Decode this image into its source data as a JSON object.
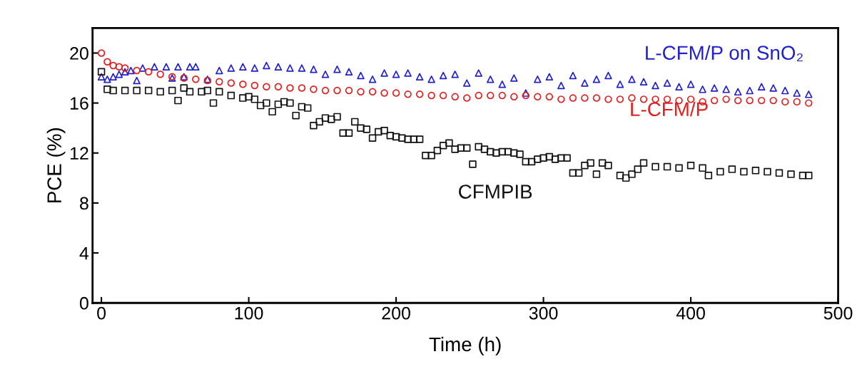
{
  "chart_data": {
    "type": "scatter",
    "xlabel": "Time (h)",
    "ylabel": "PCE (%)",
    "xlim": [
      -6,
      500
    ],
    "xticks": [
      0,
      100,
      200,
      300,
      400,
      500
    ],
    "ylim": [
      0,
      22
    ],
    "yticks": [
      0,
      4,
      8,
      12,
      16,
      20
    ],
    "grid": false,
    "legend": false,
    "series": [
      {
        "name": "L-CFM/P on SnO₂",
        "color": "#2222cc",
        "marker": "triangle",
        "x": [
          0,
          4,
          8,
          12,
          16,
          20,
          24,
          28,
          36,
          44,
          48,
          52,
          56,
          60,
          64,
          72,
          80,
          88,
          96,
          104,
          112,
          120,
          128,
          136,
          144,
          152,
          160,
          168,
          176,
          184,
          192,
          200,
          208,
          216,
          224,
          232,
          240,
          248,
          256,
          264,
          272,
          280,
          288,
          296,
          304,
          312,
          320,
          328,
          336,
          344,
          352,
          360,
          368,
          376,
          384,
          392,
          400,
          408,
          416,
          424,
          432,
          440,
          448,
          456,
          464,
          472,
          480
        ],
        "values": [
          18.1,
          17.9,
          18.1,
          18.3,
          18.5,
          18.6,
          17.8,
          18.8,
          18.9,
          18.9,
          18.0,
          18.9,
          18.1,
          18.9,
          18.9,
          17.9,
          18.6,
          18.8,
          18.9,
          18.8,
          19.0,
          18.9,
          18.8,
          18.8,
          18.7,
          18.3,
          18.7,
          18.5,
          18.2,
          17.9,
          18.4,
          18.3,
          18.4,
          18.1,
          17.9,
          18.2,
          18.3,
          17.6,
          18.4,
          17.9,
          17.5,
          18.0,
          16.8,
          17.9,
          18.1,
          17.4,
          18.2,
          17.6,
          17.9,
          18.2,
          17.5,
          17.9,
          17.7,
          17.4,
          17.6,
          17.3,
          17.5,
          17.1,
          17.2,
          17.1,
          16.9,
          17.0,
          17.3,
          17.2,
          17.0,
          16.8,
          16.7
        ]
      },
      {
        "name": "L-CFM/P",
        "color": "#e02020",
        "marker": "circle",
        "x": [
          0,
          4,
          8,
          12,
          16,
          24,
          32,
          40,
          48,
          56,
          64,
          72,
          80,
          88,
          96,
          104,
          112,
          120,
          128,
          136,
          144,
          152,
          160,
          168,
          176,
          184,
          192,
          200,
          208,
          216,
          224,
          232,
          240,
          248,
          256,
          264,
          272,
          280,
          288,
          296,
          304,
          312,
          320,
          328,
          336,
          344,
          352,
          360,
          368,
          376,
          384,
          392,
          400,
          408,
          416,
          424,
          432,
          440,
          448,
          456,
          464,
          472,
          480
        ],
        "values": [
          20.0,
          19.3,
          19.0,
          18.9,
          18.8,
          18.6,
          18.5,
          18.3,
          18.1,
          18.0,
          17.9,
          17.8,
          17.7,
          17.6,
          17.5,
          17.4,
          17.3,
          17.3,
          17.2,
          17.2,
          17.1,
          17.0,
          17.0,
          17.0,
          16.9,
          16.9,
          16.8,
          16.8,
          16.7,
          16.7,
          16.6,
          16.6,
          16.5,
          16.4,
          16.6,
          16.6,
          16.6,
          16.5,
          16.6,
          16.5,
          16.5,
          16.3,
          16.4,
          16.4,
          16.4,
          16.3,
          16.3,
          16.4,
          16.3,
          16.3,
          16.3,
          16.2,
          16.3,
          16.1,
          16.2,
          16.3,
          16.2,
          16.2,
          16.2,
          16.2,
          16.1,
          16.1,
          16.0
        ]
      },
      {
        "name": "CFMPIB",
        "color": "#111111",
        "marker": "square",
        "x": [
          0,
          4,
          8,
          16,
          24,
          32,
          40,
          48,
          52,
          56,
          60,
          68,
          72,
          76,
          80,
          88,
          96,
          100,
          104,
          108,
          112,
          116,
          120,
          124,
          128,
          132,
          136,
          140,
          144,
          148,
          152,
          156,
          160,
          164,
          168,
          172,
          176,
          180,
          184,
          188,
          192,
          196,
          200,
          204,
          208,
          212,
          216,
          220,
          224,
          228,
          232,
          236,
          240,
          244,
          248,
          252,
          256,
          260,
          264,
          268,
          272,
          276,
          280,
          284,
          288,
          292,
          296,
          300,
          304,
          308,
          312,
          316,
          320,
          324,
          328,
          332,
          336,
          340,
          344,
          352,
          356,
          360,
          364,
          368,
          376,
          384,
          392,
          400,
          408,
          412,
          420,
          428,
          436,
          444,
          452,
          460,
          468,
          476,
          480
        ],
        "values": [
          18.5,
          17.1,
          17.0,
          17.0,
          17.0,
          17.0,
          16.9,
          17.0,
          16.2,
          17.2,
          16.9,
          16.9,
          17.0,
          16.0,
          16.9,
          16.6,
          16.4,
          16.5,
          16.3,
          15.8,
          16.0,
          15.3,
          15.9,
          16.1,
          16.0,
          15.0,
          15.7,
          15.6,
          14.2,
          14.5,
          14.8,
          14.7,
          14.9,
          13.6,
          13.6,
          14.5,
          14.0,
          13.9,
          13.2,
          13.7,
          13.8,
          13.4,
          13.3,
          13.2,
          13.1,
          13.1,
          13.1,
          11.8,
          11.8,
          12.2,
          12.6,
          12.8,
          12.3,
          12.4,
          12.4,
          11.1,
          12.5,
          12.3,
          12.1,
          12.0,
          12.1,
          12.1,
          12.0,
          11.9,
          11.3,
          11.3,
          11.5,
          11.6,
          11.7,
          11.5,
          11.6,
          11.6,
          10.4,
          10.4,
          11.0,
          11.2,
          10.3,
          11.2,
          11.0,
          10.2,
          10.0,
          10.3,
          10.7,
          11.2,
          10.9,
          10.9,
          10.8,
          11.0,
          10.8,
          10.2,
          10.5,
          10.7,
          10.5,
          10.6,
          10.5,
          10.4,
          10.3,
          10.2,
          10.2
        ]
      }
    ]
  }
}
